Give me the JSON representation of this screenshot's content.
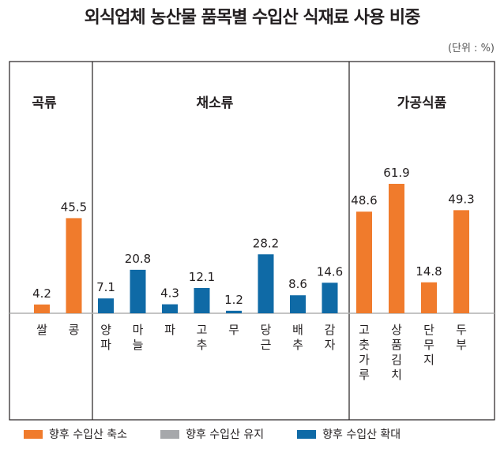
{
  "chart_data": {
    "type": "bar",
    "title": "외식업체 농산물 품목별 수입산 식재료 사용 비중",
    "unit": "(단위 : %)",
    "groups": [
      {
        "name": "곡류",
        "items": [
          {
            "label": "쌀",
            "value": 4.2,
            "series": "shrink"
          },
          {
            "label": "콩",
            "value": 45.5,
            "series": "shrink"
          }
        ]
      },
      {
        "name": "채소류",
        "items": [
          {
            "label": "양파",
            "value": 7.1,
            "series": "expand"
          },
          {
            "label": "마늘",
            "value": 20.8,
            "series": "expand"
          },
          {
            "label": "파",
            "value": 4.3,
            "series": "expand"
          },
          {
            "label": "고추",
            "value": 12.1,
            "series": "expand"
          },
          {
            "label": "무",
            "value": 1.2,
            "series": "expand"
          },
          {
            "label": "당근",
            "value": 28.2,
            "series": "expand"
          },
          {
            "label": "배추",
            "value": 8.6,
            "series": "expand"
          },
          {
            "label": "감자",
            "value": 14.6,
            "series": "expand"
          }
        ]
      },
      {
        "name": "가공식품",
        "items": [
          {
            "label": "고춧가루",
            "value": 48.6,
            "series": "shrink"
          },
          {
            "label": "상품김치",
            "value": 61.9,
            "series": "shrink"
          },
          {
            "label": "단무지",
            "value": 14.8,
            "series": "shrink"
          },
          {
            "label": "두부",
            "value": 49.3,
            "series": "shrink"
          }
        ]
      }
    ],
    "legend": [
      {
        "key": "shrink",
        "label": "향후 수입산 축소",
        "color": "#f07b2c"
      },
      {
        "key": "keep",
        "label": "향후 수입산 유지",
        "color": "#a6a8ab"
      },
      {
        "key": "expand",
        "label": "향후 수입산 확대",
        "color": "#0f6aa6"
      }
    ],
    "ylim": [
      0,
      70
    ]
  }
}
